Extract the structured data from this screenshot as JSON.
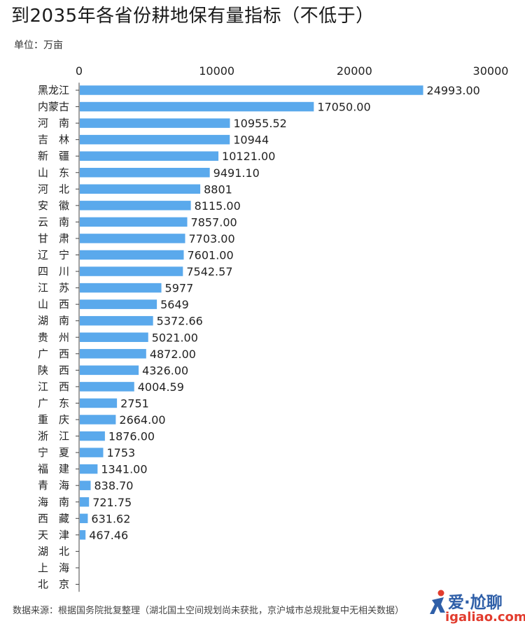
{
  "header": {
    "title": "到2035年各省份耕地保有量指标（不低于）",
    "unit": "单位：万亩"
  },
  "footer": {
    "source": "数据来源：根据国务院批复整理（湖北国土空间规划尚未获批，京沪城市总规批复中无相关数据）"
  },
  "watermark": {
    "brand": "爱·尬聊",
    "url": "igaliao.com",
    "icon": "figure-icon"
  },
  "colors": {
    "bar": "#5aa9ec",
    "axis": "#444444",
    "text": "#222222"
  },
  "chart_data": {
    "type": "bar",
    "orientation": "horizontal",
    "title": "到2035年各省份耕地保有量指标（不低于）",
    "xlabel": "",
    "ylabel": "",
    "unit": "万亩",
    "xlim": [
      0,
      30000
    ],
    "ticks": [
      0,
      10000,
      20000,
      30000
    ],
    "tick_labels": [
      "0",
      "10000",
      "20000",
      "30000"
    ],
    "categories": [
      "黑龙江",
      "内蒙古",
      "河　南",
      "吉　林",
      "新　疆",
      "山　东",
      "河　北",
      "安　徽",
      "云　南",
      "甘　肃",
      "辽　宁",
      "四　川",
      "江　苏",
      "山　西",
      "湖　南",
      "贵　州",
      "广　西",
      "陕　西",
      "江　西",
      "广　东",
      "重　庆",
      "浙　江",
      "宁　夏",
      "福　建",
      "青　海",
      "海　南",
      "西　藏",
      "天　津",
      "湖　北",
      "上　海",
      "北　京"
    ],
    "values": [
      24993.0,
      17050.0,
      10955.52,
      10944,
      10121.0,
      9491.1,
      8801,
      8115.0,
      7857.0,
      7703.0,
      7601.0,
      7542.57,
      5977,
      5649,
      5372.66,
      5021.0,
      4872.0,
      4326.0,
      4004.59,
      2751,
      2664.0,
      1876.0,
      1753,
      1341.0,
      838.7,
      721.75,
      631.62,
      467.46,
      null,
      null,
      null
    ],
    "value_labels": [
      "24993.00",
      "17050.00",
      "10955.52",
      "10944",
      "10121.00",
      "9491.10",
      "8801",
      "8115.00",
      "7857.00",
      "7703.00",
      "7601.00",
      "7542.57",
      "5977",
      "5649",
      "5372.66",
      "5021.00",
      "4872.00",
      "4326.00",
      "4004.59",
      "2751",
      "2664.00",
      "1876.00",
      "1753",
      "1341.00",
      "838.70",
      "721.75",
      "631.62",
      "467.46",
      "",
      "",
      ""
    ]
  }
}
